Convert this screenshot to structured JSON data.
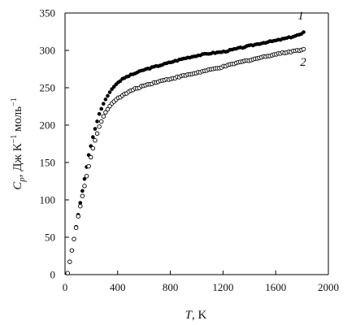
{
  "chart_data": {
    "type": "scatter",
    "title": "",
    "xlabel": {
      "main": "T",
      "unit": ", K"
    },
    "ylabel": {
      "c": "C",
      "sub": "p",
      "unit": ", Дж К",
      "exp1": "−1",
      "mol": " моль",
      "exp2": "−1"
    },
    "xlim": [
      0,
      2000
    ],
    "ylim": [
      0,
      350
    ],
    "xticks": [
      0,
      400,
      800,
      1200,
      1600,
      2000
    ],
    "yticks": [
      0,
      50,
      100,
      150,
      200,
      250,
      300,
      350
    ],
    "xtick_labels": [
      "0",
      "400",
      "800",
      "1200",
      "1600",
      "2000"
    ],
    "ytick_labels": [
      "0",
      "50",
      "100",
      "150",
      "200",
      "250",
      "300",
      "350"
    ],
    "grid": false,
    "series": [
      {
        "name": "1",
        "marker": "filled-circle",
        "color": "#000000",
        "x": [
          20,
          60,
          100,
          140,
          180,
          220,
          260,
          300,
          350,
          400,
          450,
          500,
          600,
          700,
          800,
          900,
          1000,
          1100,
          1200,
          1300,
          1400,
          1500,
          1600,
          1700,
          1800,
          1820
        ],
        "y": [
          2,
          40,
          80,
          120,
          160,
          190,
          215,
          232,
          247,
          257,
          263,
          267,
          274,
          279,
          284,
          289,
          293,
          296,
          298,
          302,
          306,
          310,
          313,
          317,
          322,
          325
        ]
      },
      {
        "name": "2",
        "marker": "open-circle",
        "color": "#000000",
        "x": [
          20,
          60,
          100,
          140,
          180,
          220,
          260,
          300,
          350,
          400,
          450,
          500,
          600,
          700,
          800,
          900,
          1000,
          1100,
          1200,
          1300,
          1400,
          1500,
          1600,
          1700,
          1800,
          1820
        ],
        "y": [
          2,
          40,
          78,
          112,
          145,
          175,
          198,
          215,
          228,
          236,
          241,
          246,
          253,
          258,
          262,
          266,
          270,
          274,
          278,
          283,
          287,
          291,
          295,
          298,
          301,
          302
        ]
      }
    ],
    "series_labels": [
      "1",
      "2"
    ]
  }
}
